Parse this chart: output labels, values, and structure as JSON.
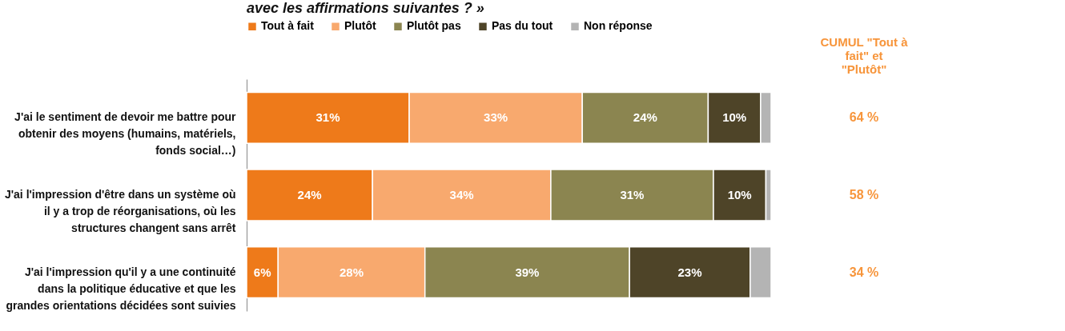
{
  "chart_data": {
    "type": "bar",
    "orientation": "horizontal",
    "stacked": true,
    "title": "avec les affirmations suivantes ? »",
    "categories": [
      "J'ai le sentiment de devoir me battre pour obtenir des moyens (humains, matériels, fonds social…)",
      "J'ai l'impression d'être dans un système où il y a trop de réorganisations, où les structures changent sans arrêt",
      "J'ai l'impression qu'il y a une continuité dans la politique éducative et que les grandes orientations décidées sont suivies"
    ],
    "series": [
      {
        "name": "Tout à fait",
        "color": "#ee7a1a",
        "values": [
          31,
          24,
          6
        ],
        "value_labels": [
          "31%",
          "24%",
          "6%"
        ]
      },
      {
        "name": "Plutôt",
        "color": "#f8a96e",
        "values": [
          33,
          34,
          28
        ],
        "value_labels": [
          "33%",
          "34%",
          "28%"
        ]
      },
      {
        "name": "Plutôt pas",
        "color": "#8b8550",
        "values": [
          24,
          31,
          39
        ],
        "value_labels": [
          "24%",
          "31%",
          "39%"
        ]
      },
      {
        "name": "Pas du tout",
        "color": "#4e4428",
        "values": [
          10,
          10,
          23
        ],
        "value_labels": [
          "10%",
          "10%",
          "23%"
        ]
      },
      {
        "name": "Non réponse",
        "color": "#b4b4b4",
        "values": [
          2,
          1,
          4
        ],
        "value_labels": [
          null,
          null,
          null
        ]
      }
    ],
    "legend": "top",
    "annotations": [
      "CUMUL \"Tout à fait\" et \"Plutôt\"",
      "64  %",
      "58  %",
      "34  %"
    ]
  }
}
